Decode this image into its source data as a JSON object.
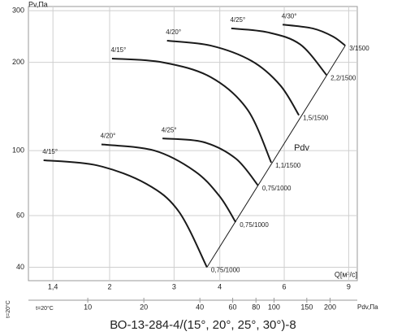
{
  "chart_data": {
    "type": "line",
    "title": "ВО-13-284-4/(15°, 20°, 25°, 30°)-8",
    "y_label": "Pv,Па",
    "x_label": "Q[м³/с]",
    "x2_label": "Pdv,Па",
    "temperature_label": "t=20°C",
    "temperature_label_small": "t=20°C",
    "log_x": true,
    "log_y": true,
    "grid": true,
    "color": "#1a1a1a",
    "xlim": [
      1.2,
      9.5
    ],
    "xticks": [
      {
        "value": 1.4,
        "label": "1,4"
      },
      2,
      3,
      4,
      6,
      9
    ],
    "ylim": [
      36,
      310
    ],
    "yticks": [
      40,
      60,
      100,
      200,
      300
    ],
    "x2lim": [
      4.8,
      280
    ],
    "x2ticks": [
      10,
      20,
      40,
      60,
      80,
      100,
      150,
      200
    ],
    "series": [
      {
        "name": "4/15°",
        "end_label": "1,1/1500",
        "x": [
          2.03,
          2.79,
          3.78,
          4.76,
          5.53
        ],
        "values": [
          206,
          200,
          178,
          138,
          91
        ]
      },
      {
        "name": "4/20°",
        "end_label": "1,5/1500",
        "x": [
          2.87,
          3.78,
          4.89,
          5.85,
          6.58
        ],
        "values": [
          237,
          228,
          202,
          167,
          132
        ]
      },
      {
        "name": "4/25°",
        "end_label": "2,2/1500",
        "x": [
          4.3,
          5.42,
          6.64,
          7.83
        ],
        "values": [
          261,
          253,
          230,
          181
        ]
      },
      {
        "name": "4/30°",
        "end_label": "3/1500",
        "x": [
          5.94,
          7.18,
          8.15,
          8.81
        ],
        "values": [
          269,
          261,
          245,
          228
        ]
      },
      {
        "name": "4/15°",
        "end_label": "0,75/1000",
        "x": [
          1.32,
          1.85,
          2.52,
          3.09,
          3.69
        ],
        "values": [
          92.7,
          89,
          77,
          62,
          40
        ]
      },
      {
        "name": "4/20°",
        "end_label": "0,75/1000",
        "x": [
          1.9,
          2.65,
          3.42,
          3.99,
          4.42
        ],
        "values": [
          105,
          100,
          85,
          70,
          57
        ]
      },
      {
        "name": "4/25°",
        "end_label": "0,75/1000",
        "x": [
          2.79,
          3.6,
          4.42,
          5.09
        ],
        "values": [
          110,
          107,
          94,
          76
        ]
      },
      {
        "name": "Pdv",
        "x": [
          3.69,
          8.81
        ],
        "values": [
          40,
          228
        ]
      }
    ]
  }
}
